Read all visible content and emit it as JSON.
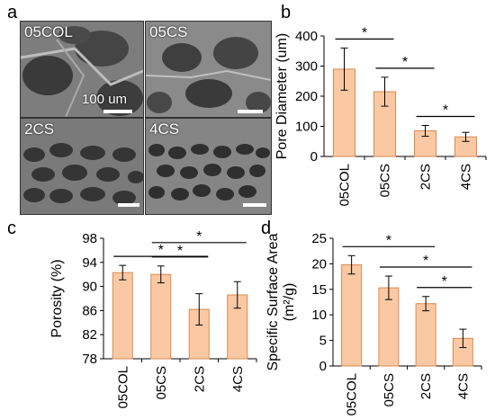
{
  "panels": {
    "a": {
      "letter": "a",
      "images": [
        "05COL",
        "05CS",
        "2CS",
        "4CS"
      ],
      "scale_label": "100 um"
    },
    "b": {
      "letter": "b"
    },
    "c": {
      "letter": "c"
    },
    "d": {
      "letter": "d"
    }
  },
  "colors": {
    "bar_fill": "#FAC9A3",
    "bar_edge": "#D98A52",
    "sem_base": "#8a8a8a"
  },
  "chart_data": [
    {
      "id": "b",
      "type": "bar",
      "categories": [
        "05COL",
        "05CS",
        "2CS",
        "4CS"
      ],
      "values": [
        290,
        215,
        85,
        65
      ],
      "errors": [
        70,
        48,
        18,
        15
      ],
      "ylabel": "Pore Diameter (um)",
      "ylim": [
        0,
        400
      ],
      "yticks": [
        0,
        100,
        200,
        300,
        400
      ],
      "significance": [
        {
          "from": 0,
          "to": 1,
          "label": "*"
        },
        {
          "from": 1,
          "to": 2,
          "label": "*"
        },
        {
          "from": 2,
          "to": 3,
          "label": "*"
        }
      ]
    },
    {
      "id": "c",
      "type": "bar",
      "categories": [
        "05COL",
        "05CS",
        "2CS",
        "4CS"
      ],
      "values": [
        92.3,
        92.0,
        86.2,
        88.6
      ],
      "errors": [
        1.2,
        1.4,
        2.6,
        2.2
      ],
      "ylabel": "Porosity (%)",
      "ylim": [
        78,
        98
      ],
      "yticks": [
        78,
        82,
        86,
        90,
        94,
        98
      ],
      "significance": [
        {
          "from": 0,
          "to": 2,
          "label": "*"
        },
        {
          "from": 1,
          "to": 2,
          "label": "*"
        },
        {
          "from": 1,
          "to": 3,
          "label": "*"
        }
      ]
    },
    {
      "id": "d",
      "type": "bar",
      "categories": [
        "05COL",
        "05CS",
        "2CS",
        "4CS"
      ],
      "values": [
        19.8,
        15.3,
        12.2,
        5.4
      ],
      "errors": [
        1.8,
        2.3,
        1.4,
        1.8
      ],
      "ylabel": "Specific Surface Area",
      "ylabel2": "(m²/g)",
      "ylim": [
        0,
        25
      ],
      "yticks": [
        0,
        5,
        10,
        15,
        20,
        25
      ],
      "significance": [
        {
          "from": 0,
          "to": 2,
          "label": "*"
        },
        {
          "from": 1,
          "to": 3,
          "label": "*"
        },
        {
          "from": 2,
          "to": 3,
          "label": "*"
        }
      ]
    }
  ]
}
